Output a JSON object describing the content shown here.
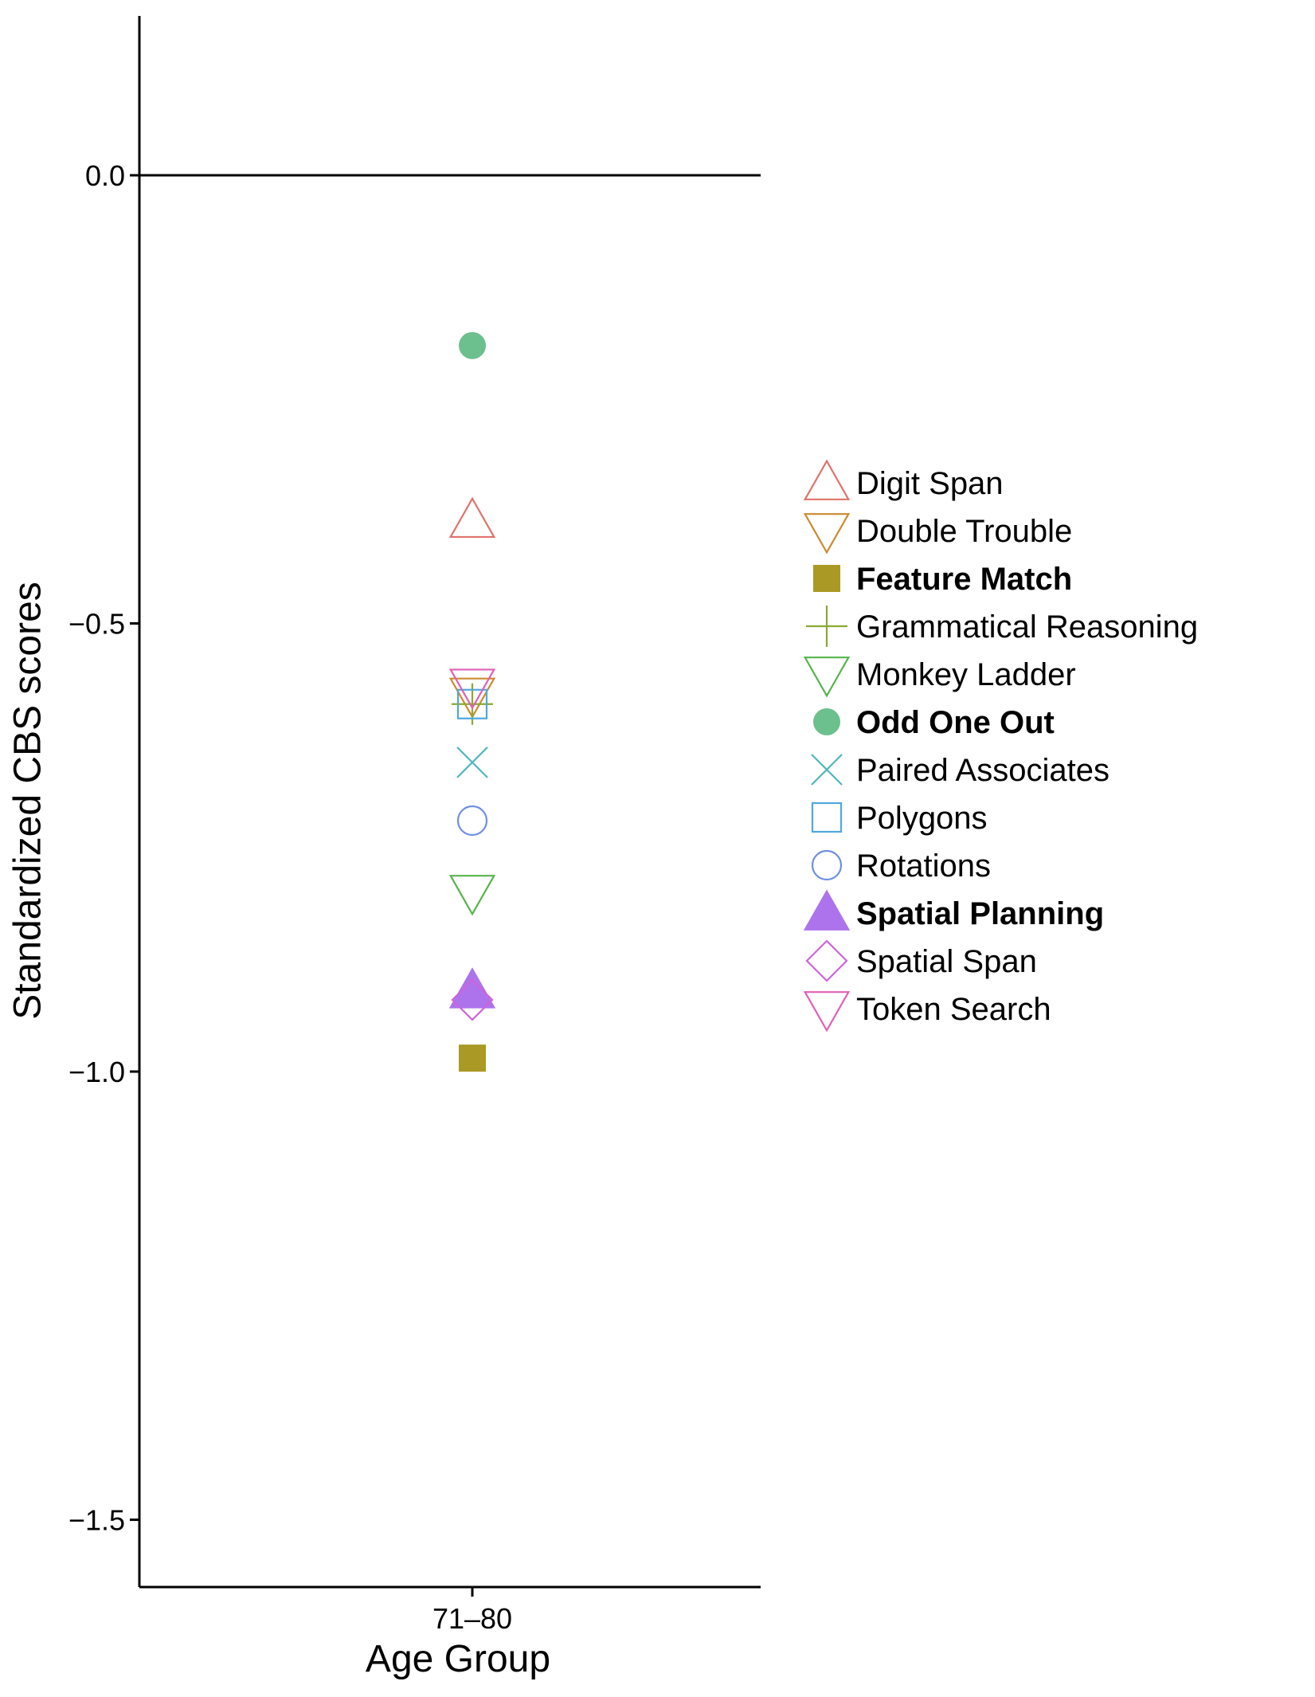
{
  "chart_data": {
    "type": "scatter",
    "xlabel": "Age Group",
    "ylabel": "Standardized CBS scores",
    "categories": [
      "71–80"
    ],
    "ylim": [
      -1.58,
      0.18
    ],
    "yticks": [
      0.0,
      -0.5,
      -1.0,
      -1.5
    ],
    "ytick_labels": [
      "0.0",
      "−0.5",
      "−1.0",
      "−1.5"
    ],
    "reference_line_y": 0.0,
    "grid": false,
    "legend_position": "right",
    "series": [
      {
        "name": "Digit Span",
        "shape": "triangle-up-open",
        "color": "#E0736A",
        "bold": false,
        "values": [
          -0.385
        ]
      },
      {
        "name": "Double Trouble",
        "shape": "triangle-down-open",
        "color": "#CC8A2E",
        "bold": false,
        "values": [
          -0.58
        ]
      },
      {
        "name": "Feature Match",
        "shape": "square-filled",
        "color": "#AA9A25",
        "bold": true,
        "values": [
          -0.985
        ]
      },
      {
        "name": "Grammatical Reasoning",
        "shape": "plus",
        "color": "#8AAA2E",
        "bold": false,
        "values": [
          -0.59
        ]
      },
      {
        "name": "Monkey Ladder",
        "shape": "triangle-down-open",
        "color": "#55B54A",
        "bold": false,
        "values": [
          -0.8
        ]
      },
      {
        "name": "Odd One Out",
        "shape": "circle-filled",
        "color": "#6CC08E",
        "bold": true,
        "values": [
          -0.19
        ]
      },
      {
        "name": "Paired Associates",
        "shape": "cross",
        "color": "#4DB6BD",
        "bold": false,
        "values": [
          -0.655
        ]
      },
      {
        "name": "Polygons",
        "shape": "square-open",
        "color": "#4FA8DD",
        "bold": false,
        "values": [
          -0.59
        ]
      },
      {
        "name": "Rotations",
        "shape": "circle-open",
        "color": "#6E8FE3",
        "bold": false,
        "values": [
          -0.72
        ]
      },
      {
        "name": "Spatial Planning",
        "shape": "triangle-up-filled",
        "color": "#AD73EC",
        "bold": true,
        "values": [
          -0.91
        ]
      },
      {
        "name": "Spatial Span",
        "shape": "diamond-open",
        "color": "#CE63D9",
        "bold": false,
        "values": [
          -0.92
        ]
      },
      {
        "name": "Token Search",
        "shape": "triangle-down-open",
        "color": "#E060B8",
        "bold": false,
        "values": [
          -0.57
        ]
      }
    ]
  }
}
